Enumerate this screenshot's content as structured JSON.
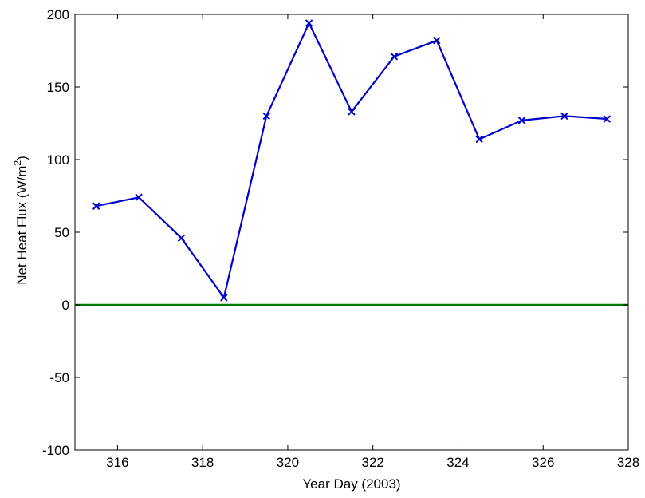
{
  "chart_data": {
    "type": "line",
    "xlabel": "Year Day (2003)",
    "ylabel": {
      "prefix": "Net Heat Flux (W/m",
      "superscript": "2",
      "suffix": ")"
    },
    "xlim": [
      315,
      328
    ],
    "ylim": [
      -100,
      200
    ],
    "xticks": [
      316,
      318,
      320,
      322,
      324,
      326,
      328
    ],
    "yticks": [
      -100,
      -50,
      0,
      50,
      100,
      150,
      200
    ],
    "grid": false,
    "series": [
      {
        "color": "#0000cc",
        "marker": "x",
        "x": [
          315.5,
          316.5,
          317.5,
          318.5,
          319.5,
          320.5,
          321.5,
          322.5,
          323.5,
          324.5,
          325.5,
          326.5,
          327.5
        ],
        "y": [
          68,
          74,
          46,
          5,
          130,
          194,
          133,
          171,
          182,
          114,
          127,
          130,
          128
        ]
      }
    ],
    "reference_line": {
      "y": 0,
      "color": "#007700"
    }
  }
}
